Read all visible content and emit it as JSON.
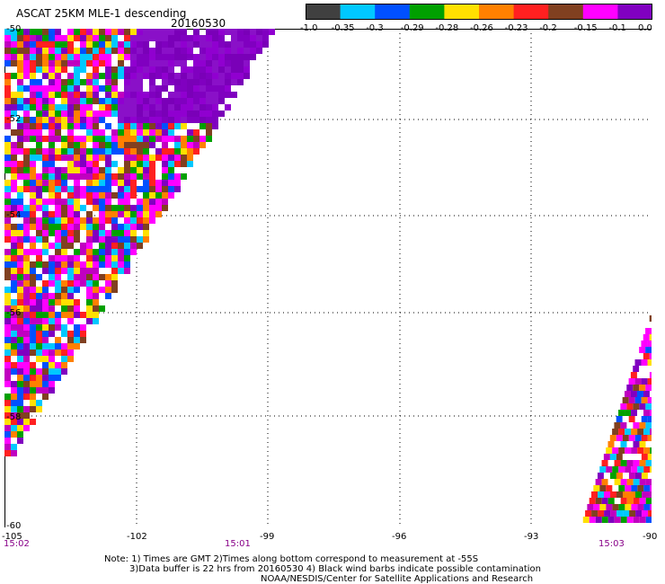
{
  "header": {
    "title": "ASCAT 25KM MLE-1 descending",
    "date": "20160530"
  },
  "colorbar": {
    "colors": [
      "#404040",
      "#00c8ff",
      "#0050ff",
      "#00a000",
      "#ffe000",
      "#ff8000",
      "#ff2020",
      "#804020",
      "#ff00ff",
      "#8000c0"
    ],
    "labels": [
      "-1.0",
      "-0.35",
      "-0.3",
      "-0.29",
      "-0.28",
      "-0.26",
      "-0.23",
      "-0.2",
      "-0.15",
      "-0.1",
      "0.0"
    ]
  },
  "axes": {
    "lat_labels": [
      "-50",
      "-52",
      "-54",
      "-56",
      "-58",
      "-60"
    ],
    "lon_labels": [
      "-105",
      "-102",
      "-99",
      "-96",
      "-93",
      "-90"
    ],
    "time_labels": [
      "15:02",
      "15:01",
      "15:03"
    ]
  },
  "notes": [
    "Note: 1) Times are GMT 2)Times along bottom correspond to measurement at -55S",
    "3)Data buffer is 22 hrs from 20160530 4) Black wind barbs indicate possible contamination",
    "NOAA/NESDIS/Center for Satellite Applications and Research"
  ]
}
